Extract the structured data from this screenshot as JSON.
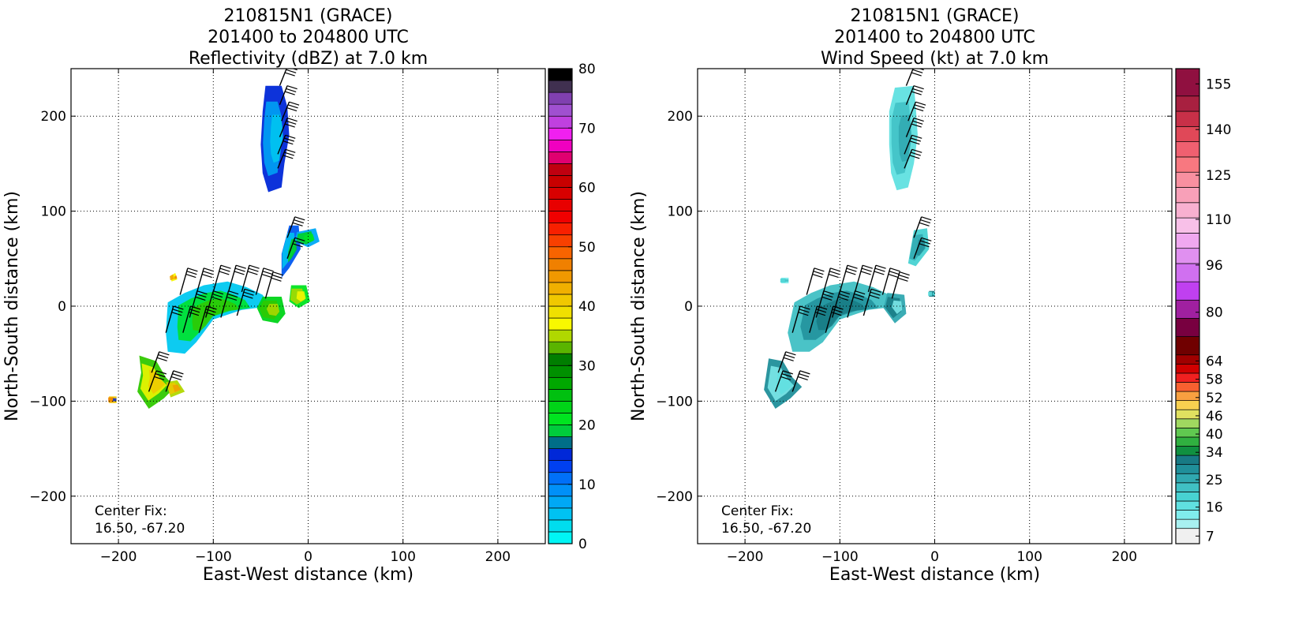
{
  "chart_data": [
    {
      "type": "heatmap",
      "title": [
        "210815N1 (GRACE)",
        "201400 to 204800 UTC",
        "Reflectivity (dBZ) at 7.0 km"
      ],
      "xlabel": "East-West distance (km)",
      "ylabel": "North-South distance (km)",
      "xlim": [
        -250,
        250
      ],
      "ylim": [
        -250,
        250
      ],
      "xticks": [
        -200,
        -100,
        0,
        100,
        200
      ],
      "yticks": [
        -200,
        -100,
        0,
        100,
        200
      ],
      "grid": true,
      "annotation": [
        "Center Fix:",
        "16.50, -67.20"
      ],
      "colorbar": {
        "min": 0,
        "max": 80,
        "ticks": [
          0,
          10,
          20,
          30,
          40,
          50,
          60,
          70,
          80
        ],
        "colors": [
          "#00f5f5",
          "#00ddee",
          "#00c2f2",
          "#00a8f5",
          "#0090f8",
          "#0070f8",
          "#0040f0",
          "#0028d8",
          "#006e88",
          "#00cc3c",
          "#00e420",
          "#00d418",
          "#00c010",
          "#00a800",
          "#009000",
          "#007e00",
          "#5ab400",
          "#b0d800",
          "#f8f800",
          "#f0e000",
          "#f0c800",
          "#f0b000",
          "#f09800",
          "#f08000",
          "#f86400",
          "#f84000",
          "#f82000",
          "#f00000",
          "#e80000",
          "#d80000",
          "#c80000",
          "#c00010",
          "#e00070",
          "#f000c0",
          "#f020f0",
          "#c040e0",
          "#a050d0",
          "#8040b0",
          "#403050",
          "#000000"
        ]
      },
      "fields": {
        "colors": [
          "#0028d8",
          "#0058f0",
          "#00a8f5",
          "#00c8f0",
          "#00d418",
          "#00e420",
          "#30c800",
          "#b0d800",
          "#f8f800",
          "#f0c800",
          "#f0a000",
          "#f08000"
        ],
        "polygons": [
          [
            [
              -45,
              232
            ],
            [
              -28,
              232
            ],
            [
              -22,
              210
            ],
            [
              -20,
              180
            ],
            [
              -25,
              150
            ],
            [
              -28,
              125
            ],
            [
              -42,
              120
            ],
            [
              -48,
              140
            ],
            [
              -50,
              170
            ],
            [
              -48,
              205
            ]
          ],
          [
            [
              -20,
              85
            ],
            [
              -10,
              85
            ],
            [
              -8,
              60
            ],
            [
              -20,
              40
            ],
            [
              -28,
              30
            ],
            [
              -28,
              55
            ]
          ],
          [
            [
              -12,
              78
            ],
            [
              8,
              82
            ],
            [
              12,
              68
            ],
            [
              0,
              62
            ],
            [
              -14,
              68
            ]
          ],
          [
            [
              -148,
              4
            ],
            [
              -130,
              14
            ],
            [
              -110,
              22
            ],
            [
              -85,
              26
            ],
            [
              -65,
              20
            ],
            [
              -48,
              12
            ],
            [
              -40,
              0
            ],
            [
              -70,
              -4
            ],
            [
              -100,
              -14
            ],
            [
              -118,
              -38
            ],
            [
              -130,
              -50
            ],
            [
              -148,
              -48
            ],
            [
              -150,
              -28
            ]
          ],
          [
            [
              -48,
              10
            ],
            [
              -28,
              10
            ],
            [
              -24,
              -8
            ],
            [
              -32,
              -18
            ],
            [
              -48,
              -15
            ],
            [
              -54,
              -2
            ]
          ],
          [
            [
              -18,
              22
            ],
            [
              -2,
              22
            ],
            [
              2,
              5
            ],
            [
              -10,
              -2
            ],
            [
              -20,
              5
            ]
          ],
          [
            [
              -178,
              -52
            ],
            [
              -160,
              -58
            ],
            [
              -150,
              -75
            ],
            [
              -140,
              -85
            ],
            [
              -152,
              -97
            ],
            [
              -168,
              -108
            ],
            [
              -180,
              -90
            ],
            [
              -176,
              -70
            ]
          ],
          [
            [
              -150,
              -80
            ],
            [
              -138,
              -78
            ],
            [
              -130,
              -90
            ],
            [
              -145,
              -96
            ]
          ],
          [
            [
              -145,
              32
            ],
            [
              -140,
              35
            ],
            [
              -138,
              28
            ],
            [
              -144,
              26
            ]
          ],
          [
            [
              -210,
              -95
            ],
            [
              -202,
              -95
            ],
            [
              -202,
              -102
            ],
            [
              -210,
              -102
            ]
          ]
        ]
      },
      "barbs": [
        [
          -30,
          232,
          8,
          20
        ],
        [
          -30,
          212,
          8,
          20
        ],
        [
          -28,
          195,
          8,
          20
        ],
        [
          -30,
          178,
          8,
          20
        ],
        [
          -32,
          160,
          8,
          20
        ],
        [
          -32,
          145,
          8,
          20
        ],
        [
          -22,
          72,
          8,
          22
        ],
        [
          -22,
          50,
          8,
          22
        ],
        [
          -135,
          12,
          8,
          28
        ],
        [
          -118,
          12,
          8,
          28
        ],
        [
          -100,
          15,
          8,
          28
        ],
        [
          -84,
          15,
          8,
          28
        ],
        [
          -70,
          15,
          8,
          28
        ],
        [
          -55,
          12,
          8,
          28
        ],
        [
          -45,
          8,
          8,
          28
        ],
        [
          -125,
          -12,
          8,
          28
        ],
        [
          -108,
          -12,
          8,
          28
        ],
        [
          -92,
          -12,
          8,
          28
        ],
        [
          -75,
          -10,
          8,
          28
        ],
        [
          -150,
          -28,
          8,
          28
        ],
        [
          -132,
          -28,
          8,
          28
        ],
        [
          -115,
          -28,
          8,
          28
        ],
        [
          -165,
          -70,
          8,
          22
        ],
        [
          -168,
          -90,
          8,
          22
        ],
        [
          -150,
          -90,
          8,
          22
        ]
      ]
    },
    {
      "type": "heatmap",
      "title": [
        "210815N1 (GRACE)",
        "201400 to 204800 UTC",
        "Wind Speed (kt) at 7.0 km"
      ],
      "xlabel": "East-West distance (km)",
      "ylabel": "North-South distance (km)",
      "xlim": [
        -250,
        250
      ],
      "ylim": [
        -250,
        250
      ],
      "xticks": [
        -200,
        -100,
        0,
        100,
        200
      ],
      "yticks": [
        -200,
        -100,
        0,
        100,
        200
      ],
      "grid": true,
      "annotation": [
        "Center Fix:",
        "16.50, -67.20"
      ],
      "colorbar": {
        "min": 4,
        "max": 160,
        "ticks": [
          7,
          16,
          25,
          34,
          40,
          46,
          52,
          58,
          64,
          80,
          96,
          110,
          125,
          140,
          155
        ],
        "tick_positions": [
          6.5,
          16,
          25,
          34,
          40,
          46,
          52,
          58,
          64,
          80,
          95.5,
          110.5,
          125,
          140,
          155
        ],
        "colors": [
          "#f0f0f0",
          "#a8f0f0",
          "#80ecec",
          "#60e0e0",
          "#48d2d2",
          "#40c0c4",
          "#30a8b0",
          "#208f9a",
          "#187a84",
          "#109040",
          "#30b040",
          "#60c850",
          "#a0d860",
          "#e0e060",
          "#f8d050",
          "#f8a040",
          "#f86030",
          "#f02020",
          "#d00000",
          "#a00000",
          "#700000",
          "#780040",
          "#a020a0",
          "#c040f0",
          "#d070f0",
          "#e090f0",
          "#f0a8f0",
          "#f8c0e8",
          "#f8b0d0",
          "#f8a0b8",
          "#f890a0",
          "#f87880",
          "#f06070",
          "#e04858",
          "#c83048",
          "#a82040",
          "#901040"
        ],
        "steps": [
          4,
          9,
          12,
          15,
          18,
          21,
          24,
          27,
          30,
          33,
          36,
          39,
          42,
          45,
          48,
          51,
          54,
          57,
          60,
          63,
          66,
          72,
          78,
          84,
          90,
          96,
          101,
          106,
          111,
          116,
          121,
          126,
          131,
          136,
          141,
          146,
          151,
          160
        ]
      },
      "fields": {
        "colors": [
          "#60e0e0",
          "#48d2d2",
          "#40c0c4",
          "#30a8b0",
          "#208f9a",
          "#187a84",
          "#80ecec"
        ],
        "polygons": [
          [
            [
              -42,
              230
            ],
            [
              -22,
              232
            ],
            [
              -20,
              210
            ],
            [
              -18,
              180
            ],
            [
              -22,
              150
            ],
            [
              -28,
              125
            ],
            [
              -40,
              122
            ],
            [
              -46,
              140
            ],
            [
              -48,
              170
            ],
            [
              -48,
              205
            ]
          ],
          [
            [
              -22,
              80
            ],
            [
              -8,
              82
            ],
            [
              -6,
              60
            ],
            [
              -20,
              42
            ],
            [
              -28,
              45
            ]
          ],
          [
            [
              -148,
              4
            ],
            [
              -130,
              14
            ],
            [
              -110,
              22
            ],
            [
              -85,
              26
            ],
            [
              -65,
              20
            ],
            [
              -48,
              12
            ],
            [
              -38,
              0
            ],
            [
              -70,
              -4
            ],
            [
              -100,
              -14
            ],
            [
              -118,
              -38
            ],
            [
              -132,
              -48
            ],
            [
              -150,
              -48
            ],
            [
              -155,
              -28
            ]
          ],
          [
            [
              -50,
              14
            ],
            [
              -32,
              12
            ],
            [
              -30,
              -8
            ],
            [
              -42,
              -18
            ],
            [
              -54,
              -2
            ]
          ],
          [
            [
              -175,
              -55
            ],
            [
              -160,
              -58
            ],
            [
              -150,
              -75
            ],
            [
              -140,
              -85
            ],
            [
              -152,
              -97
            ],
            [
              -168,
              -108
            ],
            [
              -180,
              -88
            ]
          ],
          [
            [
              -6,
              16
            ],
            [
              0,
              16
            ],
            [
              0,
              10
            ],
            [
              -6,
              10
            ]
          ],
          [
            [
              -162,
              30
            ],
            [
              -154,
              30
            ],
            [
              -154,
              24
            ],
            [
              -162,
              24
            ]
          ]
        ]
      },
      "barbs": [
        [
          -30,
          232,
          8,
          20
        ],
        [
          -30,
          212,
          8,
          20
        ],
        [
          -28,
          195,
          8,
          20
        ],
        [
          -30,
          178,
          8,
          20
        ],
        [
          -32,
          160,
          8,
          20
        ],
        [
          -32,
          145,
          8,
          20
        ],
        [
          -22,
          72,
          8,
          22
        ],
        [
          -22,
          50,
          8,
          22
        ],
        [
          -135,
          12,
          8,
          28
        ],
        [
          -118,
          12,
          8,
          28
        ],
        [
          -100,
          15,
          8,
          28
        ],
        [
          -84,
          15,
          8,
          28
        ],
        [
          -70,
          15,
          8,
          28
        ],
        [
          -55,
          12,
          8,
          28
        ],
        [
          -45,
          8,
          8,
          28
        ],
        [
          -125,
          -12,
          8,
          28
        ],
        [
          -108,
          -12,
          8,
          28
        ],
        [
          -92,
          -12,
          8,
          28
        ],
        [
          -75,
          -10,
          8,
          28
        ],
        [
          -150,
          -28,
          8,
          28
        ],
        [
          -132,
          -28,
          8,
          28
        ],
        [
          -115,
          -28,
          8,
          28
        ],
        [
          -165,
          -70,
          8,
          22
        ],
        [
          -168,
          -90,
          8,
          22
        ],
        [
          -150,
          -90,
          8,
          22
        ]
      ]
    }
  ]
}
